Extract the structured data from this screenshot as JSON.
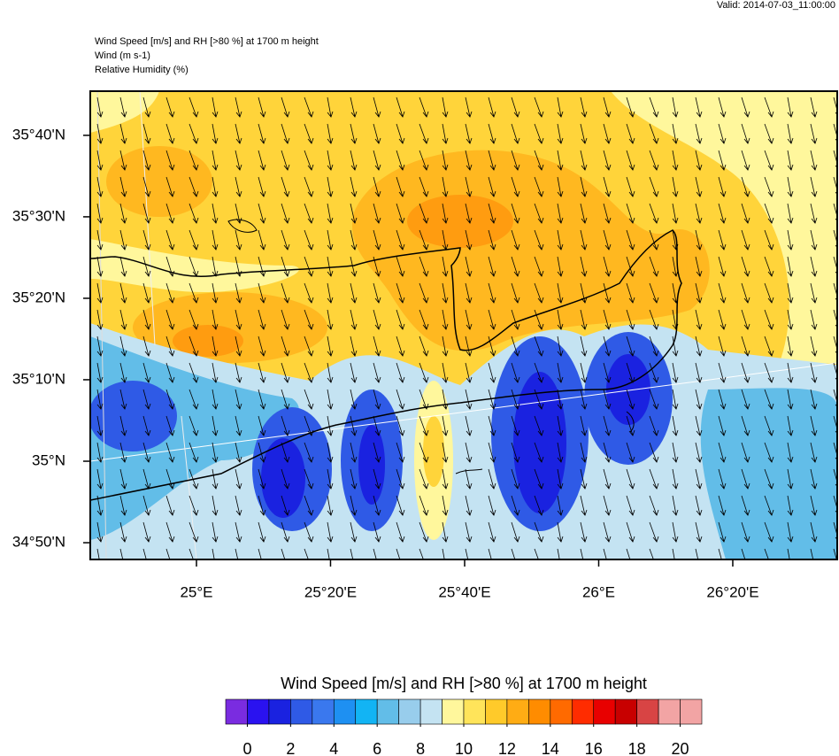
{
  "valid": "Valid: 2014-07-03_11:00:00",
  "header": {
    "lines": [
      "Wind Speed [m/s] and RH [>80 %] at 1700 m height",
      "Wind   (m s-1)",
      "Relative Humidity   (%)"
    ]
  },
  "map": {
    "xlim": [
      24.736,
      26.593
    ],
    "ylim": [
      34.799,
      35.757
    ],
    "xticks": [
      {
        "value": 25,
        "label": "25°E"
      },
      {
        "value": 25.3333,
        "label": "25°20'E"
      },
      {
        "value": 25.6667,
        "label": "25°40'E"
      },
      {
        "value": 26,
        "label": "26°E"
      },
      {
        "value": 26.3333,
        "label": "26°20'E"
      }
    ],
    "yticks": [
      {
        "value": 34.8333,
        "label": "34°50'N"
      },
      {
        "value": 35,
        "label": "35°N"
      },
      {
        "value": 35.1667,
        "label": "35°10'N"
      },
      {
        "value": 35.3333,
        "label": "35°20'N"
      },
      {
        "value": 35.5,
        "label": "35°30'N"
      },
      {
        "value": 35.6667,
        "label": "35°40'N"
      }
    ]
  },
  "colorbar": {
    "title": "Wind Speed [m/s] and RH [>80 %] at 1700 m height",
    "range": [
      -1,
      21
    ],
    "colors": [
      "#7a2ce0",
      "#2a12f0",
      "#1a22e0",
      "#2f5ae6",
      "#3a78ee",
      "#1e90f2",
      "#12b4f4",
      "#62bde8",
      "#98cdec",
      "#c4e3f2",
      "#fff79c",
      "#ffe45a",
      "#ffca2a",
      "#ffac14",
      "#ff8c00",
      "#ff6a00",
      "#ff2c00",
      "#e80000",
      "#c80000",
      "#d84444",
      "#f2a4a4",
      "#f2a4a4"
    ],
    "ticks": [
      0,
      2,
      4,
      6,
      8,
      10,
      12,
      14,
      16,
      18,
      20
    ]
  }
}
